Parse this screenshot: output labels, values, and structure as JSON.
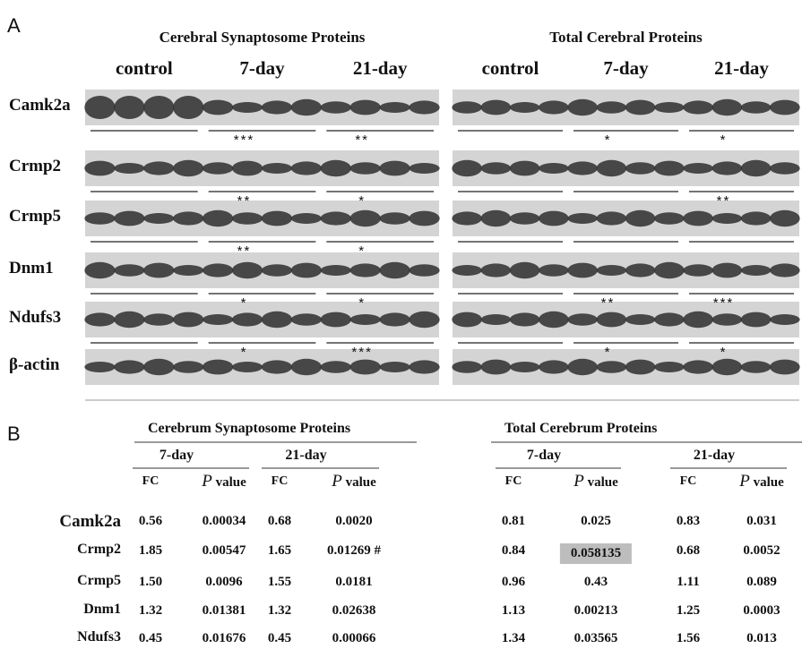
{
  "panel_a": {
    "label": "A",
    "groups": [
      {
        "title": "Cerebral Synaptosome Proteins",
        "columns": [
          "control",
          "7-day",
          "21-day"
        ]
      },
      {
        "title": "Total Cerebral Proteins",
        "columns": [
          "control",
          "7-day",
          "21-day"
        ]
      }
    ],
    "rows": [
      {
        "label": "Camk2a",
        "stars": [
          [
            null,
            "***",
            "**"
          ],
          [
            null,
            "*",
            "*"
          ]
        ]
      },
      {
        "label": "Crmp2",
        "stars": [
          [
            null,
            "**",
            "*"
          ],
          [
            null,
            null,
            "**"
          ]
        ]
      },
      {
        "label": "Crmp5",
        "stars": [
          [
            null,
            "**",
            "*"
          ],
          [
            null,
            null,
            null
          ]
        ]
      },
      {
        "label": "Dnm1",
        "stars": [
          [
            null,
            "*",
            "*"
          ],
          [
            null,
            "**",
            "***"
          ]
        ]
      },
      {
        "label": "Ndufs3",
        "stars": [
          [
            null,
            "*",
            "***"
          ],
          [
            null,
            "*",
            "*"
          ]
        ]
      },
      {
        "label": "β-actin",
        "stars": null
      }
    ]
  },
  "panel_b": {
    "label": "B",
    "groups": [
      {
        "title": "Cerebrum Synaptosome Proteins",
        "periods": [
          "7-day",
          "21-day"
        ]
      },
      {
        "title": "Total Cerebrum Proteins",
        "periods": [
          "7-day",
          "21-day"
        ]
      }
    ],
    "column_headers": [
      "FC",
      "P value"
    ],
    "rows": [
      [
        "Camk2a",
        "0.56",
        "0.00034",
        "0.68",
        "0.0020",
        "0.81",
        "0.025",
        "0.83",
        "0.031"
      ],
      [
        "Crmp2",
        "1.85",
        "0.00547",
        "1.65",
        "0.01269 #",
        "0.84",
        "0.058135",
        "0.68",
        "0.0052"
      ],
      [
        "Crmp5",
        "1.50",
        "0.0096",
        "1.55",
        "0.0181",
        "0.96",
        "0.43",
        "1.11",
        "0.089"
      ],
      [
        "Dnm1",
        "1.32",
        "0.01381",
        "1.32",
        "0.02638",
        "1.13",
        "0.00213",
        "1.25",
        "0.0003"
      ],
      [
        "Ndufs3",
        "0.45",
        "0.01676",
        "0.45",
        "0.00066",
        "1.34",
        "0.03565",
        "1.56",
        "0.013"
      ]
    ],
    "highlighted_cell": [
      1,
      6
    ]
  }
}
